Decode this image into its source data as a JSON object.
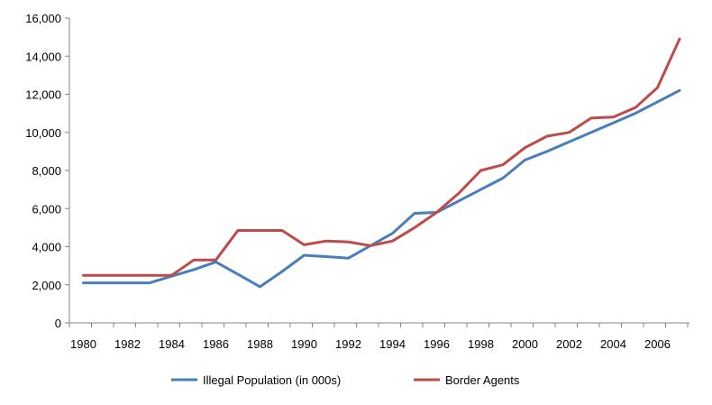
{
  "chart_data": {
    "type": "line",
    "title": "",
    "xlabel": "",
    "ylabel": "",
    "x": [
      1980,
      1981,
      1982,
      1983,
      1984,
      1985,
      1986,
      1987,
      1988,
      1989,
      1990,
      1991,
      1992,
      1993,
      1994,
      1995,
      1996,
      1997,
      1998,
      1999,
      2000,
      2001,
      2002,
      2003,
      2004,
      2005,
      2006,
      2007
    ],
    "xlim": [
      1980,
      2007
    ],
    "x_tick_labels": [
      "1980",
      "1982",
      "1984",
      "1986",
      "1988",
      "1990",
      "1992",
      "1994",
      "1996",
      "1998",
      "2000",
      "2002",
      "2004",
      "2006"
    ],
    "ylim": [
      0,
      16000
    ],
    "y_ticks": [
      0,
      2000,
      4000,
      6000,
      8000,
      10000,
      12000,
      14000,
      16000
    ],
    "y_tick_labels": [
      "0",
      "2,000",
      "4,000",
      "6,000",
      "8,000",
      "10,000",
      "12,000",
      "14,000",
      "16,000"
    ],
    "grid": false,
    "legend_position": "bottom",
    "series": [
      {
        "name": "Illegal Population (in 000s)",
        "color": "#4a7ebb",
        "values": [
          2100,
          2100,
          2100,
          2100,
          2450,
          2800,
          3200,
          2550,
          1900,
          2700,
          3550,
          3480,
          3400,
          4050,
          4700,
          5750,
          5800,
          6400,
          7000,
          7600,
          8550,
          9000,
          9500,
          10000,
          10500,
          11000,
          11600,
          12200
        ]
      },
      {
        "name": "Border Agents",
        "color": "#be4b48",
        "values": [
          2500,
          2500,
          2500,
          2500,
          2500,
          3300,
          3300,
          4850,
          4850,
          4850,
          4100,
          4300,
          4250,
          4050,
          4300,
          5000,
          5800,
          6800,
          8000,
          8300,
          9200,
          9800,
          10000,
          10750,
          10800,
          11300,
          12350,
          14900
        ]
      }
    ]
  }
}
